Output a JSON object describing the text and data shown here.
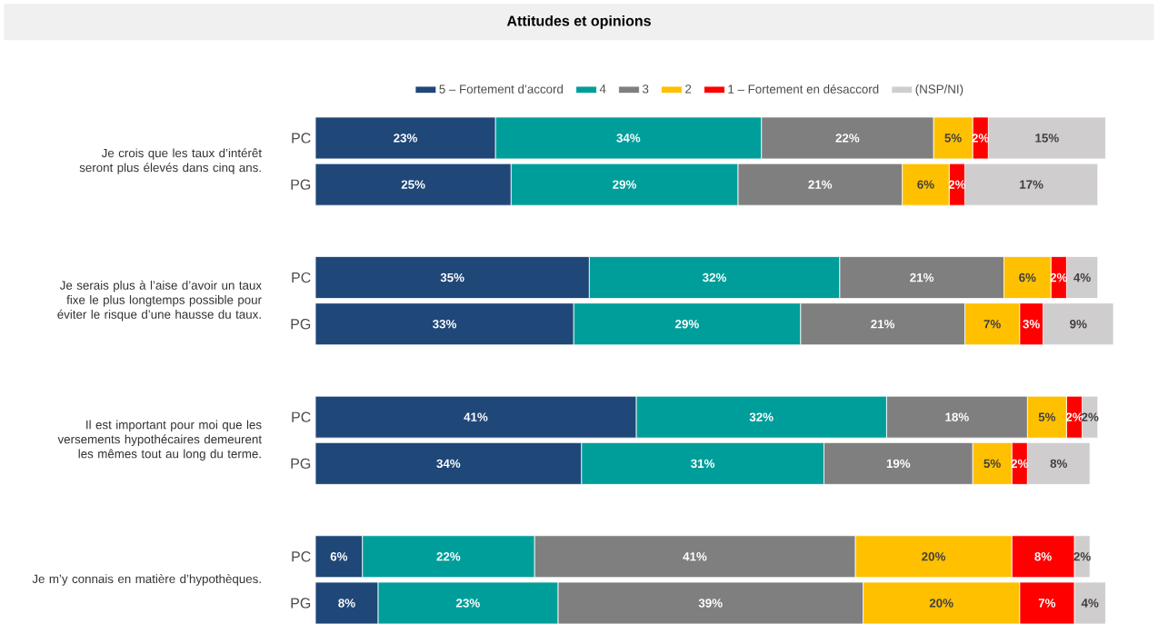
{
  "chart_data": {
    "type": "bar",
    "orientation": "horizontal",
    "stacked": true,
    "title": "Attitudes et opinions",
    "categories": [
      "PC",
      "PG",
      "PC",
      "PG",
      "PC",
      "PG",
      "PC",
      "PG"
    ],
    "annotations": [
      "Je crois que les taux d’intérêt seront plus élevés dans cinq ans.",
      "Je serais plus à l’aise d’avoir un taux fixe le plus longtemps possible pour éviter le risque d’une hausse du taux.",
      "Il est important pour moi que les versements hypothécaires demeurent les mêmes tout au long du terme.",
      "Je m’y connais en matière d’hypothèques."
    ],
    "series": [
      {
        "name": "5 – Fortement d’accord",
        "color": "#1f4778",
        "values": [
          23,
          25,
          35,
          33,
          41,
          34,
          6,
          8
        ],
        "value_labels": [
          "23%",
          "25%",
          "35%",
          "33%",
          "41%",
          "34%",
          "6%",
          "8%"
        ]
      },
      {
        "name": "4",
        "color": "#009e9a",
        "values": [
          34,
          29,
          32,
          29,
          32,
          31,
          22,
          23
        ],
        "value_labels": [
          "34%",
          "29%",
          "32%",
          "29%",
          "32%",
          "31%",
          "22%",
          "23%"
        ]
      },
      {
        "name": "3",
        "color": "#7f7f7f",
        "values": [
          22,
          21,
          21,
          21,
          18,
          19,
          41,
          39
        ],
        "value_labels": [
          "22%",
          "21%",
          "21%",
          "21%",
          "18%",
          "19%",
          "41%",
          "39%"
        ]
      },
      {
        "name": "2",
        "color": "#ffc000",
        "values": [
          5,
          6,
          6,
          7,
          5,
          5,
          20,
          20
        ],
        "value_labels": [
          "5%",
          "6%",
          "6%",
          "7%",
          "5%",
          "5%",
          "20%",
          "20%"
        ]
      },
      {
        "name": "1 – Fortement en désaccord",
        "color": "#ff0000",
        "values": [
          2,
          2,
          2,
          3,
          2,
          2,
          8,
          7
        ],
        "value_labels": [
          "2%",
          "2%",
          "2%",
          "3%",
          "2%",
          "2%",
          "8%",
          "7%"
        ]
      },
      {
        "name": "(NSP/NI)",
        "color": "#cfcdcd",
        "values": [
          15,
          17,
          4,
          9,
          2,
          8,
          2,
          4
        ],
        "value_labels": [
          "15%",
          "17%",
          "4%",
          "9%",
          "2%",
          "8%",
          "2%",
          "4%"
        ]
      }
    ],
    "xlim": [
      0,
      102
    ],
    "legend": "top",
    "tick_labels": "y"
  }
}
